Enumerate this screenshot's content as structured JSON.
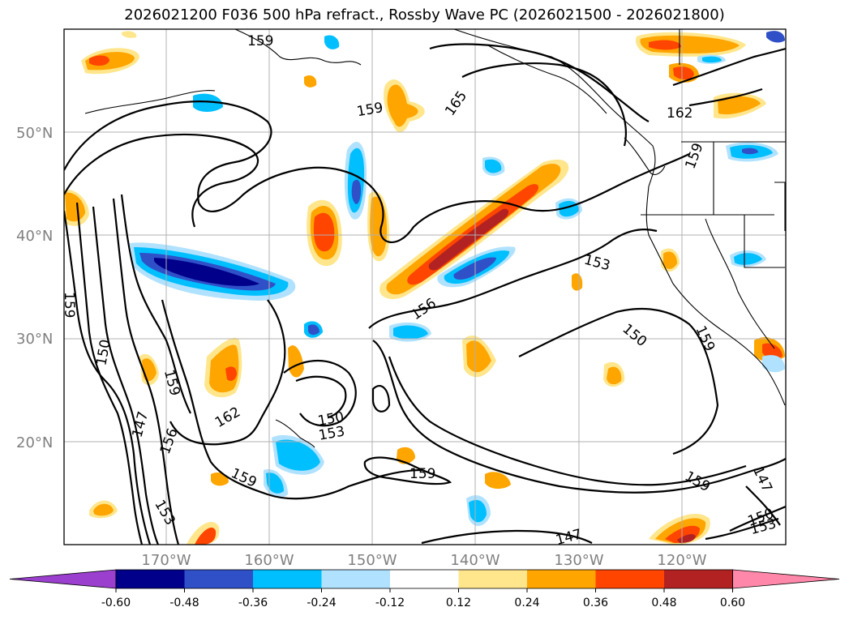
{
  "title": "2026021200 F036 500 hPa refract., Rossby Wave PC (2026021500 - 2026021800)",
  "lat_labels": [
    "50°N",
    "40°N",
    "30°N",
    "20°N"
  ],
  "lon_labels": [
    "170°W",
    "160°W",
    "150°W",
    "140°W",
    "130°W",
    "120°W"
  ],
  "contour_labels": [
    "159",
    "165",
    "162",
    "159",
    "153",
    "156",
    "159",
    "150",
    "147",
    "156",
    "159",
    "162",
    "150",
    "153",
    "159",
    "153",
    "159",
    "150",
    "147",
    "147",
    "150",
    "153",
    "159"
  ],
  "colorbar": {
    "ticks": [
      "-0.60",
      "-0.48",
      "-0.36",
      "-0.24",
      "-0.12",
      "0.12",
      "0.24",
      "0.36",
      "0.48",
      "0.60"
    ],
    "colors": [
      "#9b3fcf",
      "#00008b",
      "#3050c8",
      "#00bfff",
      "#b0e2ff",
      "#ffffff",
      "#ffe68c",
      "#ffa500",
      "#ff4500",
      "#b22222",
      "#ff88aa"
    ]
  },
  "fill_colors": {
    "neg_light": "#b0e2ff",
    "neg_mid": "#00bfff",
    "neg_strong": "#3050c8",
    "neg_max": "#00008b",
    "pos_light": "#ffe68c",
    "pos_mid": "#ffa500",
    "pos_strong": "#ff4500",
    "pos_max": "#b22222"
  }
}
